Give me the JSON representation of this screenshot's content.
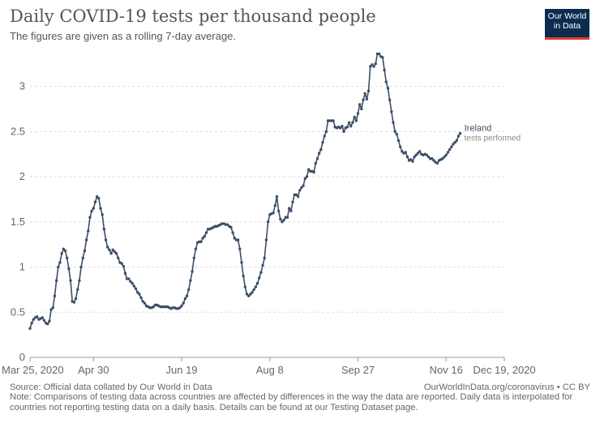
{
  "header": {
    "title": "Daily COVID-19 tests per thousand people",
    "subtitle": "The figures are given as a rolling 7-day average."
  },
  "logo": {
    "line1": "Our World",
    "line2": "in Data",
    "background": "#0b2c4f",
    "accent": "#e03c31"
  },
  "footer": {
    "source": "Source: Official data collated by Our World in Data",
    "credit": "OurWorldInData.org/coronavirus • CC BY",
    "note": "Note: Comparisons of testing data across countries are affected by differences in the way the data are reported. Daily data is interpolated for countries not reporting testing data on a daily basis. Details can be found at our Testing Dataset page."
  },
  "chart_data": {
    "type": "line",
    "title": "Daily COVID-19 tests per thousand people",
    "subtitle": "The figures are given as a rolling 7-day average.",
    "xlabel": "",
    "ylabel": "",
    "ylim": [
      0,
      3.4
    ],
    "yticks": [
      0,
      0.5,
      1,
      1.5,
      2,
      2.5,
      3
    ],
    "ytick_labels": [
      "0",
      "0.5",
      "1",
      "1.5",
      "2",
      "2.5",
      "3"
    ],
    "xlim": [
      "2020-03-25",
      "2020-12-19"
    ],
    "xticks": [
      "2020-03-25",
      "2020-04-30",
      "2020-06-19",
      "2020-08-08",
      "2020-09-27",
      "2020-11-16",
      "2020-12-19"
    ],
    "xtick_labels": [
      "Mar 25, 2020",
      "Apr 30",
      "Jun 19",
      "Aug 8",
      "Sep 27",
      "Nov 16",
      "Dec 19, 2020"
    ],
    "grid": "horizontal dashed",
    "line_color": "#3c4e66",
    "series": [
      {
        "name": "Ireland",
        "annotation": "tests performed",
        "points": [
          [
            "2020-03-25",
            0.32
          ],
          [
            "2020-03-26",
            0.38
          ],
          [
            "2020-03-27",
            0.42
          ],
          [
            "2020-03-28",
            0.44
          ],
          [
            "2020-03-29",
            0.45
          ],
          [
            "2020-03-30",
            0.42
          ],
          [
            "2020-03-31",
            0.43
          ],
          [
            "2020-04-01",
            0.44
          ],
          [
            "2020-04-02",
            0.41
          ],
          [
            "2020-04-03",
            0.38
          ],
          [
            "2020-04-04",
            0.37
          ],
          [
            "2020-04-05",
            0.4
          ],
          [
            "2020-04-06",
            0.53
          ],
          [
            "2020-04-07",
            0.55
          ],
          [
            "2020-04-08",
            0.68
          ],
          [
            "2020-04-09",
            0.85
          ],
          [
            "2020-04-10",
            1.0
          ],
          [
            "2020-04-11",
            1.05
          ],
          [
            "2020-04-12",
            1.15
          ],
          [
            "2020-04-13",
            1.2
          ],
          [
            "2020-04-14",
            1.18
          ],
          [
            "2020-04-15",
            1.1
          ],
          [
            "2020-04-16",
            0.98
          ],
          [
            "2020-04-17",
            0.85
          ],
          [
            "2020-04-18",
            0.62
          ],
          [
            "2020-04-19",
            0.61
          ],
          [
            "2020-04-20",
            0.65
          ],
          [
            "2020-04-21",
            0.75
          ],
          [
            "2020-04-22",
            0.85
          ],
          [
            "2020-04-23",
            1.0
          ],
          [
            "2020-04-24",
            1.1
          ],
          [
            "2020-04-25",
            1.18
          ],
          [
            "2020-04-26",
            1.3
          ],
          [
            "2020-04-27",
            1.4
          ],
          [
            "2020-04-28",
            1.55
          ],
          [
            "2020-04-29",
            1.62
          ],
          [
            "2020-04-30",
            1.65
          ],
          [
            "2020-05-01",
            1.72
          ],
          [
            "2020-05-02",
            1.78
          ],
          [
            "2020-05-03",
            1.76
          ],
          [
            "2020-05-04",
            1.65
          ],
          [
            "2020-05-05",
            1.58
          ],
          [
            "2020-05-06",
            1.42
          ],
          [
            "2020-05-07",
            1.3
          ],
          [
            "2020-05-08",
            1.22
          ],
          [
            "2020-05-09",
            1.19
          ],
          [
            "2020-05-10",
            1.15
          ],
          [
            "2020-05-11",
            1.19
          ],
          [
            "2020-05-12",
            1.17
          ],
          [
            "2020-05-13",
            1.15
          ],
          [
            "2020-05-14",
            1.1
          ],
          [
            "2020-05-15",
            1.05
          ],
          [
            "2020-05-16",
            1.04
          ],
          [
            "2020-05-17",
            1.01
          ],
          [
            "2020-05-18",
            0.93
          ],
          [
            "2020-05-19",
            0.87
          ],
          [
            "2020-05-20",
            0.87
          ],
          [
            "2020-05-21",
            0.84
          ],
          [
            "2020-05-22",
            0.82
          ],
          [
            "2020-05-23",
            0.79
          ],
          [
            "2020-05-24",
            0.76
          ],
          [
            "2020-05-25",
            0.72
          ],
          [
            "2020-05-26",
            0.7
          ],
          [
            "2020-05-27",
            0.66
          ],
          [
            "2020-05-28",
            0.62
          ],
          [
            "2020-05-29",
            0.6
          ],
          [
            "2020-05-30",
            0.57
          ],
          [
            "2020-05-31",
            0.56
          ],
          [
            "2020-06-01",
            0.55
          ],
          [
            "2020-06-02",
            0.55
          ],
          [
            "2020-06-03",
            0.56
          ],
          [
            "2020-06-04",
            0.58
          ],
          [
            "2020-06-05",
            0.58
          ],
          [
            "2020-06-06",
            0.57
          ],
          [
            "2020-06-07",
            0.56
          ],
          [
            "2020-06-08",
            0.56
          ],
          [
            "2020-06-09",
            0.56
          ],
          [
            "2020-06-10",
            0.56
          ],
          [
            "2020-06-11",
            0.56
          ],
          [
            "2020-06-12",
            0.55
          ],
          [
            "2020-06-13",
            0.54
          ],
          [
            "2020-06-14",
            0.55
          ],
          [
            "2020-06-15",
            0.55
          ],
          [
            "2020-06-16",
            0.54
          ],
          [
            "2020-06-17",
            0.54
          ],
          [
            "2020-06-18",
            0.55
          ],
          [
            "2020-06-19",
            0.57
          ],
          [
            "2020-06-20",
            0.6
          ],
          [
            "2020-06-21",
            0.65
          ],
          [
            "2020-06-22",
            0.68
          ],
          [
            "2020-06-23",
            0.75
          ],
          [
            "2020-06-24",
            0.85
          ],
          [
            "2020-06-25",
            0.95
          ],
          [
            "2020-06-26",
            1.1
          ],
          [
            "2020-06-27",
            1.2
          ],
          [
            "2020-06-28",
            1.27
          ],
          [
            "2020-06-29",
            1.28
          ],
          [
            "2020-06-30",
            1.28
          ],
          [
            "2020-07-01",
            1.32
          ],
          [
            "2020-07-02",
            1.34
          ],
          [
            "2020-07-03",
            1.38
          ],
          [
            "2020-07-04",
            1.42
          ],
          [
            "2020-07-05",
            1.42
          ],
          [
            "2020-07-06",
            1.43
          ],
          [
            "2020-07-07",
            1.44
          ],
          [
            "2020-07-08",
            1.45
          ],
          [
            "2020-07-09",
            1.45
          ],
          [
            "2020-07-10",
            1.46
          ],
          [
            "2020-07-11",
            1.47
          ],
          [
            "2020-07-12",
            1.48
          ],
          [
            "2020-07-13",
            1.48
          ],
          [
            "2020-07-14",
            1.47
          ],
          [
            "2020-07-15",
            1.47
          ],
          [
            "2020-07-16",
            1.45
          ],
          [
            "2020-07-17",
            1.44
          ],
          [
            "2020-07-18",
            1.38
          ],
          [
            "2020-07-19",
            1.32
          ],
          [
            "2020-07-20",
            1.3
          ],
          [
            "2020-07-21",
            1.3
          ],
          [
            "2020-07-22",
            1.2
          ],
          [
            "2020-07-23",
            1.05
          ],
          [
            "2020-07-24",
            0.9
          ],
          [
            "2020-07-25",
            0.78
          ],
          [
            "2020-07-26",
            0.7
          ],
          [
            "2020-07-27",
            0.68
          ],
          [
            "2020-07-28",
            0.7
          ],
          [
            "2020-07-29",
            0.72
          ],
          [
            "2020-07-30",
            0.75
          ],
          [
            "2020-07-31",
            0.78
          ],
          [
            "2020-08-01",
            0.82
          ],
          [
            "2020-08-02",
            0.88
          ],
          [
            "2020-08-03",
            0.94
          ],
          [
            "2020-08-04",
            1.02
          ],
          [
            "2020-08-05",
            1.1
          ],
          [
            "2020-08-06",
            1.3
          ],
          [
            "2020-08-07",
            1.5
          ],
          [
            "2020-08-08",
            1.58
          ],
          [
            "2020-08-09",
            1.59
          ],
          [
            "2020-08-10",
            1.6
          ],
          [
            "2020-08-11",
            1.68
          ],
          [
            "2020-08-12",
            1.78
          ],
          [
            "2020-08-13",
            1.62
          ],
          [
            "2020-08-14",
            1.53
          ],
          [
            "2020-08-15",
            1.5
          ],
          [
            "2020-08-16",
            1.52
          ],
          [
            "2020-08-17",
            1.55
          ],
          [
            "2020-08-18",
            1.55
          ],
          [
            "2020-08-19",
            1.65
          ],
          [
            "2020-08-20",
            1.62
          ],
          [
            "2020-08-21",
            1.72
          ],
          [
            "2020-08-22",
            1.8
          ],
          [
            "2020-08-23",
            1.8
          ],
          [
            "2020-08-24",
            1.78
          ],
          [
            "2020-08-25",
            1.85
          ],
          [
            "2020-08-26",
            1.88
          ],
          [
            "2020-08-27",
            1.9
          ],
          [
            "2020-08-28",
            1.98
          ],
          [
            "2020-08-29",
            2.0
          ],
          [
            "2020-08-30",
            2.08
          ],
          [
            "2020-08-31",
            2.06
          ],
          [
            "2020-09-01",
            2.06
          ],
          [
            "2020-09-02",
            2.05
          ],
          [
            "2020-09-03",
            2.15
          ],
          [
            "2020-09-04",
            2.2
          ],
          [
            "2020-09-05",
            2.26
          ],
          [
            "2020-09-06",
            2.3
          ],
          [
            "2020-09-07",
            2.38
          ],
          [
            "2020-09-08",
            2.45
          ],
          [
            "2020-09-09",
            2.5
          ],
          [
            "2020-09-10",
            2.62
          ],
          [
            "2020-09-11",
            2.62
          ],
          [
            "2020-09-12",
            2.62
          ],
          [
            "2020-09-13",
            2.62
          ],
          [
            "2020-09-14",
            2.55
          ],
          [
            "2020-09-15",
            2.54
          ],
          [
            "2020-09-16",
            2.55
          ],
          [
            "2020-09-17",
            2.54
          ],
          [
            "2020-09-18",
            2.56
          ],
          [
            "2020-09-19",
            2.5
          ],
          [
            "2020-09-20",
            2.54
          ],
          [
            "2020-09-21",
            2.55
          ],
          [
            "2020-09-22",
            2.6
          ],
          [
            "2020-09-23",
            2.56
          ],
          [
            "2020-09-24",
            2.6
          ],
          [
            "2020-09-25",
            2.66
          ],
          [
            "2020-09-26",
            2.62
          ],
          [
            "2020-09-27",
            2.7
          ],
          [
            "2020-09-28",
            2.8
          ],
          [
            "2020-09-29",
            2.75
          ],
          [
            "2020-09-30",
            2.85
          ],
          [
            "2020-10-01",
            2.92
          ],
          [
            "2020-10-02",
            2.86
          ],
          [
            "2020-10-03",
            2.95
          ],
          [
            "2020-10-04",
            3.22
          ],
          [
            "2020-10-05",
            3.24
          ],
          [
            "2020-10-06",
            3.22
          ],
          [
            "2020-10-07",
            3.25
          ],
          [
            "2020-10-08",
            3.36
          ],
          [
            "2020-10-09",
            3.36
          ],
          [
            "2020-10-10",
            3.33
          ],
          [
            "2020-10-11",
            3.32
          ],
          [
            "2020-10-12",
            3.18
          ],
          [
            "2020-10-13",
            3.05
          ],
          [
            "2020-10-14",
            2.98
          ],
          [
            "2020-10-15",
            2.85
          ],
          [
            "2020-10-16",
            2.72
          ],
          [
            "2020-10-17",
            2.6
          ],
          [
            "2020-10-18",
            2.5
          ],
          [
            "2020-10-19",
            2.47
          ],
          [
            "2020-10-20",
            2.4
          ],
          [
            "2020-10-21",
            2.33
          ],
          [
            "2020-10-22",
            2.28
          ],
          [
            "2020-10-23",
            2.26
          ],
          [
            "2020-10-24",
            2.27
          ],
          [
            "2020-10-25",
            2.22
          ],
          [
            "2020-10-26",
            2.18
          ],
          [
            "2020-10-27",
            2.19
          ],
          [
            "2020-10-28",
            2.17
          ],
          [
            "2020-10-29",
            2.22
          ],
          [
            "2020-10-30",
            2.24
          ],
          [
            "2020-10-31",
            2.26
          ],
          [
            "2020-11-01",
            2.28
          ],
          [
            "2020-11-02",
            2.25
          ],
          [
            "2020-11-03",
            2.24
          ],
          [
            "2020-11-04",
            2.25
          ],
          [
            "2020-11-05",
            2.24
          ],
          [
            "2020-11-06",
            2.22
          ],
          [
            "2020-11-07",
            2.2
          ],
          [
            "2020-11-08",
            2.2
          ],
          [
            "2020-11-09",
            2.18
          ],
          [
            "2020-11-10",
            2.16
          ],
          [
            "2020-11-11",
            2.15
          ],
          [
            "2020-11-12",
            2.18
          ],
          [
            "2020-11-13",
            2.19
          ],
          [
            "2020-11-14",
            2.2
          ],
          [
            "2020-11-15",
            2.22
          ],
          [
            "2020-11-16",
            2.24
          ],
          [
            "2020-11-17",
            2.27
          ],
          [
            "2020-11-18",
            2.3
          ],
          [
            "2020-11-19",
            2.33
          ],
          [
            "2020-11-20",
            2.36
          ],
          [
            "2020-11-21",
            2.38
          ],
          [
            "2020-11-22",
            2.4
          ],
          [
            "2020-11-23",
            2.45
          ],
          [
            "2020-11-24",
            2.48
          ]
        ]
      }
    ]
  }
}
